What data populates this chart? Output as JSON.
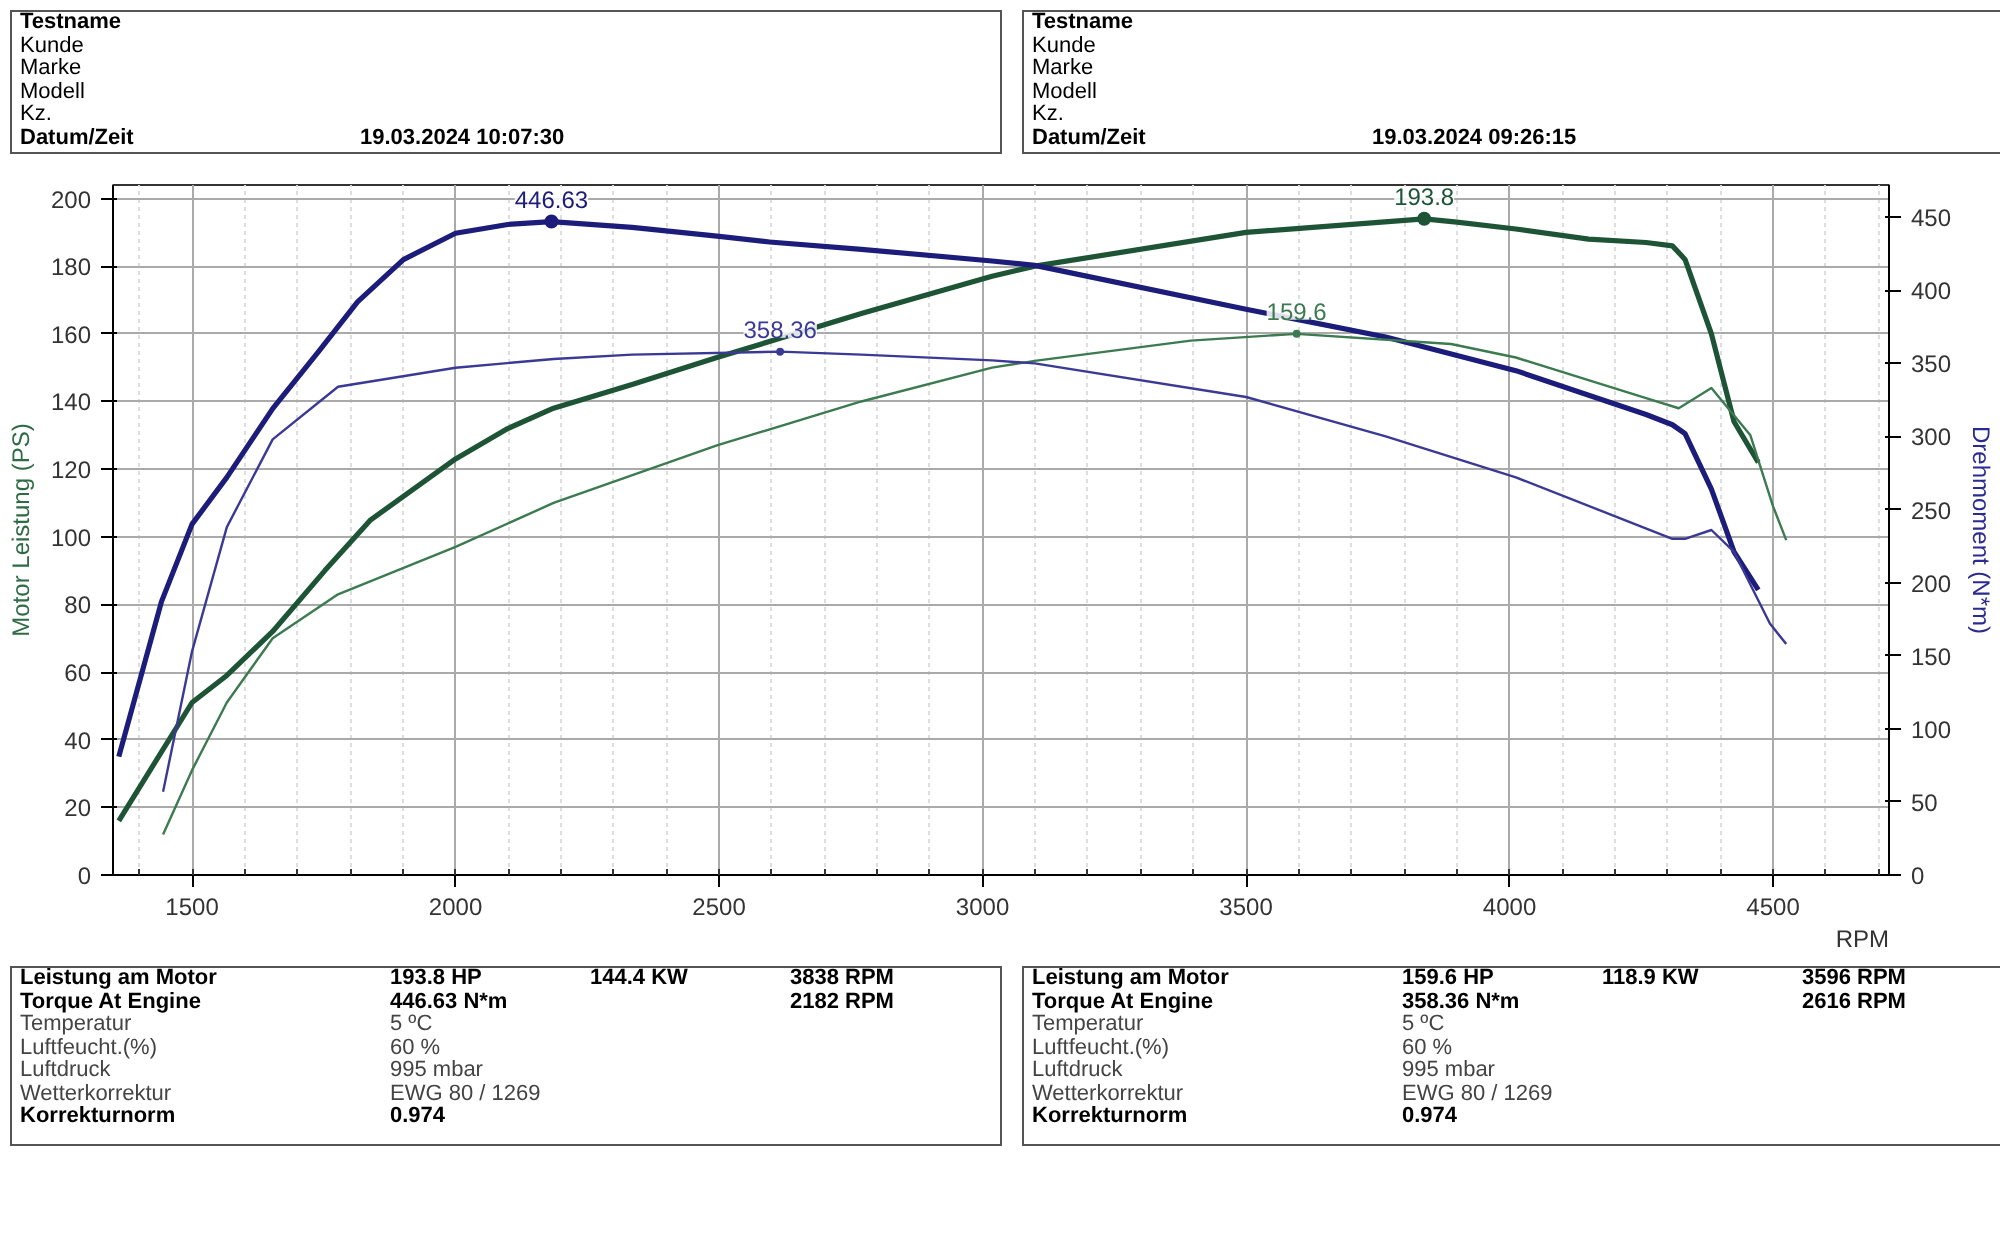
{
  "chart_data": {
    "type": "line",
    "xlabel": "RPM",
    "ylabel": "Motor Leistung (PS)",
    "y2label": "Drehmoment (N*m)",
    "xlim": [
      1350,
      4720
    ],
    "ylim": [
      0,
      204
    ],
    "y2lim": [
      0,
      472
    ],
    "xticks": [
      1500,
      2000,
      2500,
      3000,
      3500,
      4000,
      4500
    ],
    "yticks": [
      0,
      20,
      40,
      60,
      80,
      100,
      120,
      140,
      160,
      180,
      200
    ],
    "y2ticks": [
      0,
      50,
      100,
      150,
      200,
      250,
      300,
      350,
      400,
      450
    ],
    "grid": true,
    "marker": "none",
    "line_style": "solid",
    "series": [
      {
        "color": "#1e5436",
        "x": [
          1361,
          1500,
          1566,
          1653,
          1752,
          1839,
          2000,
          2099,
          2186,
          2335,
          2496,
          2770,
          3018,
          3099,
          3500,
          3838,
          3900,
          4012,
          4150,
          4259,
          4309,
          4333,
          4383,
          4426,
          4472
        ],
        "values": [
          16,
          51,
          59,
          72,
          90,
          105,
          123,
          132,
          138,
          145,
          153,
          166,
          177,
          180,
          190,
          194,
          193,
          191,
          188,
          187,
          186,
          182,
          160,
          134,
          122
        ]
      },
      {
        "color": "#1c1c7a",
        "axis": "y2",
        "x": [
          1361,
          1442,
          1500,
          1566,
          1653,
          1740,
          1814,
          1901,
          2000,
          2099,
          2182,
          2335,
          2496,
          2596,
          2770,
          3018,
          3099,
          3500,
          3765,
          4012,
          4259,
          4309,
          4333,
          4383,
          4426,
          4472
        ],
        "values": [
          81,
          187,
          240,
          272,
          319,
          358,
          392,
          421,
          439,
          445,
          447,
          443,
          437,
          433,
          428,
          420,
          417,
          387,
          368,
          345,
          315,
          308,
          302,
          264,
          221,
          195
        ]
      },
      {
        "color": "#3c7a50",
        "x": [
          1445,
          1500,
          1566,
          1653,
          1777,
          2000,
          2186,
          2496,
          2770,
          3018,
          3099,
          3395,
          3596,
          3889,
          4012,
          4259,
          4321,
          4383,
          4457,
          4500,
          4525
        ],
        "values": [
          12,
          31,
          51,
          70,
          83,
          97,
          110,
          127,
          140,
          150,
          152,
          158,
          160,
          157,
          153,
          141,
          138,
          144,
          130,
          109,
          99
        ]
      },
      {
        "color": "#3a3a96",
        "axis": "y2",
        "x": [
          1445,
          1500,
          1566,
          1653,
          1777,
          2000,
          2186,
          2335,
          2616,
          2770,
          3018,
          3099,
          3500,
          3765,
          4012,
          4309,
          4333,
          4383,
          4426,
          4494,
          4525
        ],
        "values": [
          57,
          153,
          238,
          298,
          334,
          347,
          353,
          356,
          358,
          356,
          352,
          350,
          327,
          300,
          272,
          230,
          230,
          236,
          221,
          172,
          158
        ]
      }
    ],
    "annotations": [
      "193.8",
      "446.63",
      "159.6",
      "358.36",
      "Testname",
      "Kunde",
      "Marke",
      "Modell",
      "Kz.",
      "Datum/Zeit",
      "19.03.2024 10:07:30",
      "Testname",
      "Kunde",
      "Marke",
      "Modell",
      "Kz.",
      "Datum/Zeit",
      "19.03.2024 09:26:15",
      "Leistung am Motor",
      "193.8 HP",
      "144.4 KW",
      "3838 RPM",
      "Torque At Engine",
      "446.63 N*m",
      "2182 RPM",
      "Temperatur",
      "5 ºC",
      "Luftfeucht.(%)",
      "60 %",
      "Luftdruck",
      "995 mbar",
      "Wetterkorrektur",
      "EWG 80 / 1269",
      "Korrekturnorm",
      "0.974",
      "Leistung am Motor",
      "159.6 HP",
      "118.9 KW",
      "3596 RPM",
      "Torque At Engine",
      "358.36 N*m",
      "2616 RPM",
      "Temperatur",
      "5 ºC",
      "Luftfeucht.(%)",
      "60 %",
      "Luftdruck",
      "995 mbar",
      "Wetterkorrektur",
      "EWG 80 / 1269",
      "Korrekturnorm",
      "0.974"
    ]
  }
}
